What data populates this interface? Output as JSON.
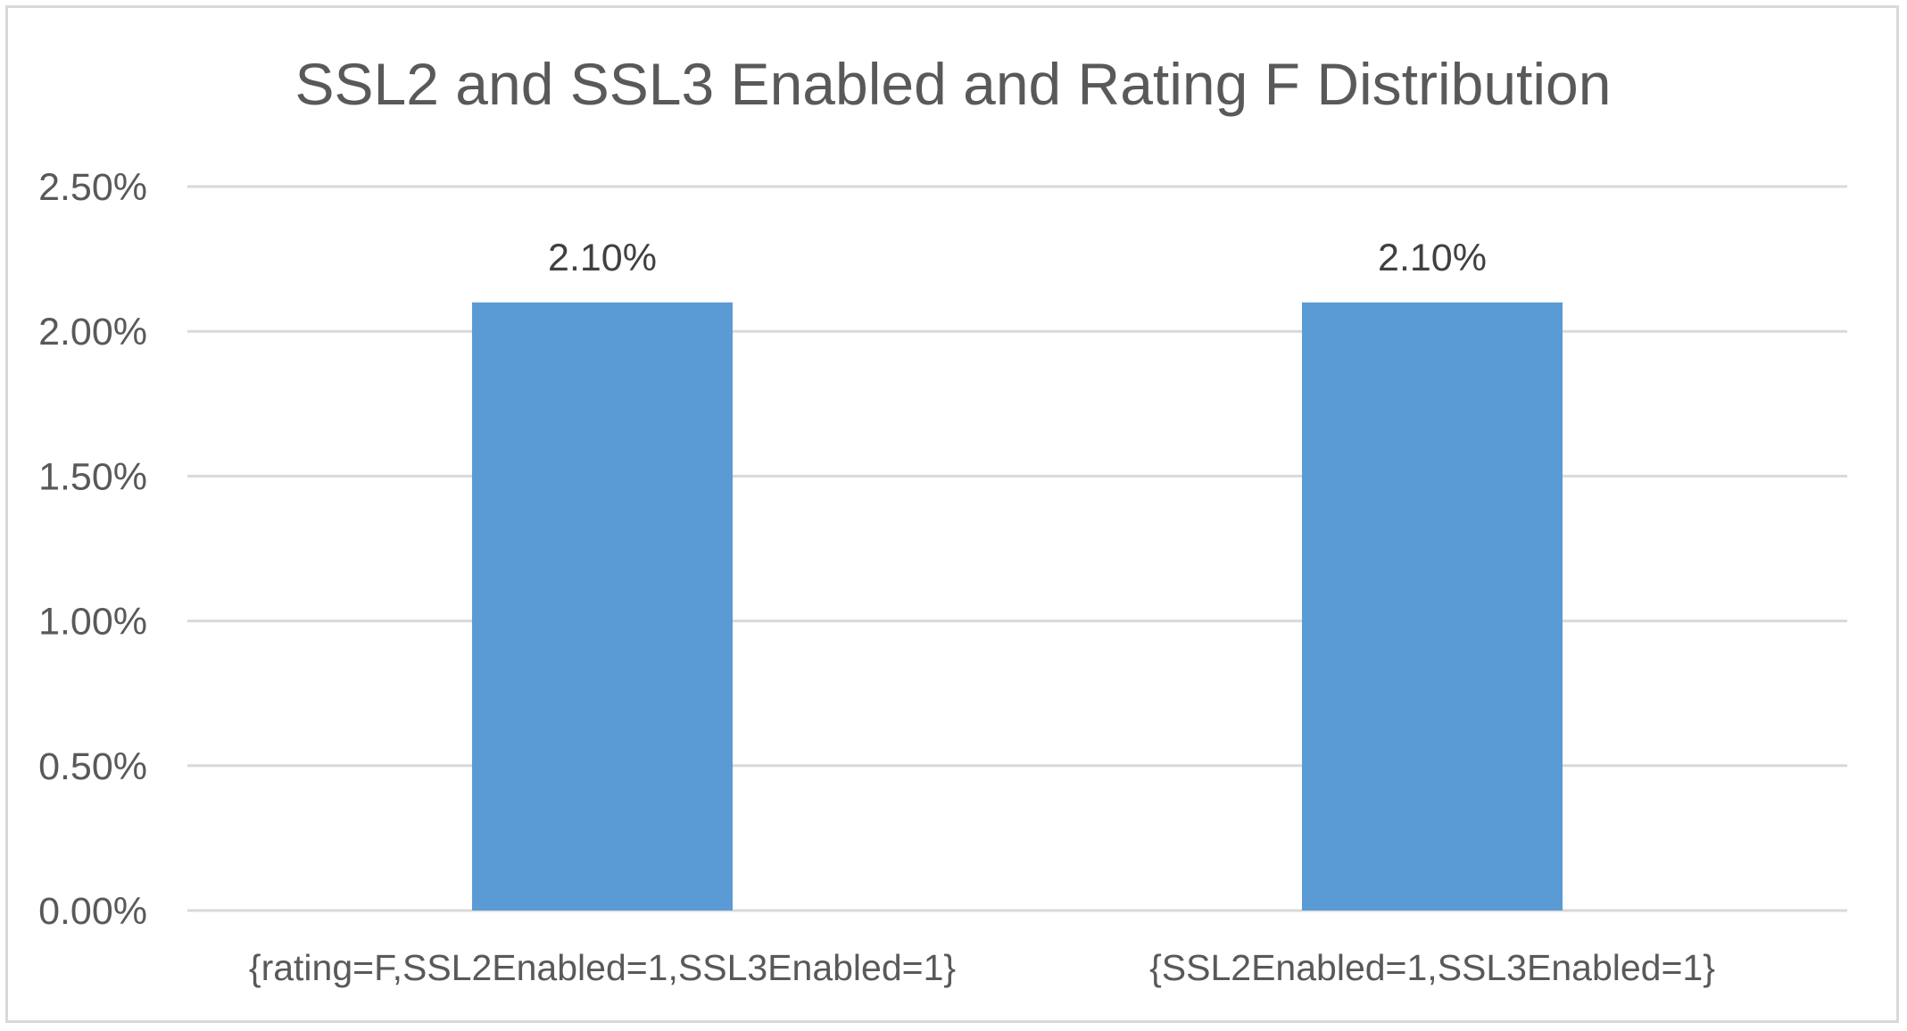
{
  "chart_data": {
    "type": "bar",
    "title": "SSL2 and SSL3 Enabled and Rating F Distribution",
    "xlabel": "",
    "ylabel": "",
    "categories": [
      "{rating=F,SSL2Enabled=1,SSL3Enabled=1}",
      "{SSL2Enabled=1,SSL3Enabled=1}"
    ],
    "values": [
      0.021,
      0.021
    ],
    "data_labels": [
      "2.10%",
      "2.10%"
    ],
    "ylim": [
      0,
      0.025
    ],
    "yticks": [
      0,
      0.005,
      0.01,
      0.015,
      0.02,
      0.025
    ],
    "ytick_labels": [
      "0.00%",
      "0.50%",
      "1.00%",
      "1.50%",
      "2.00%",
      "2.50%"
    ],
    "grid": true,
    "legend": "none",
    "bar_color": "#5b9bd5"
  }
}
